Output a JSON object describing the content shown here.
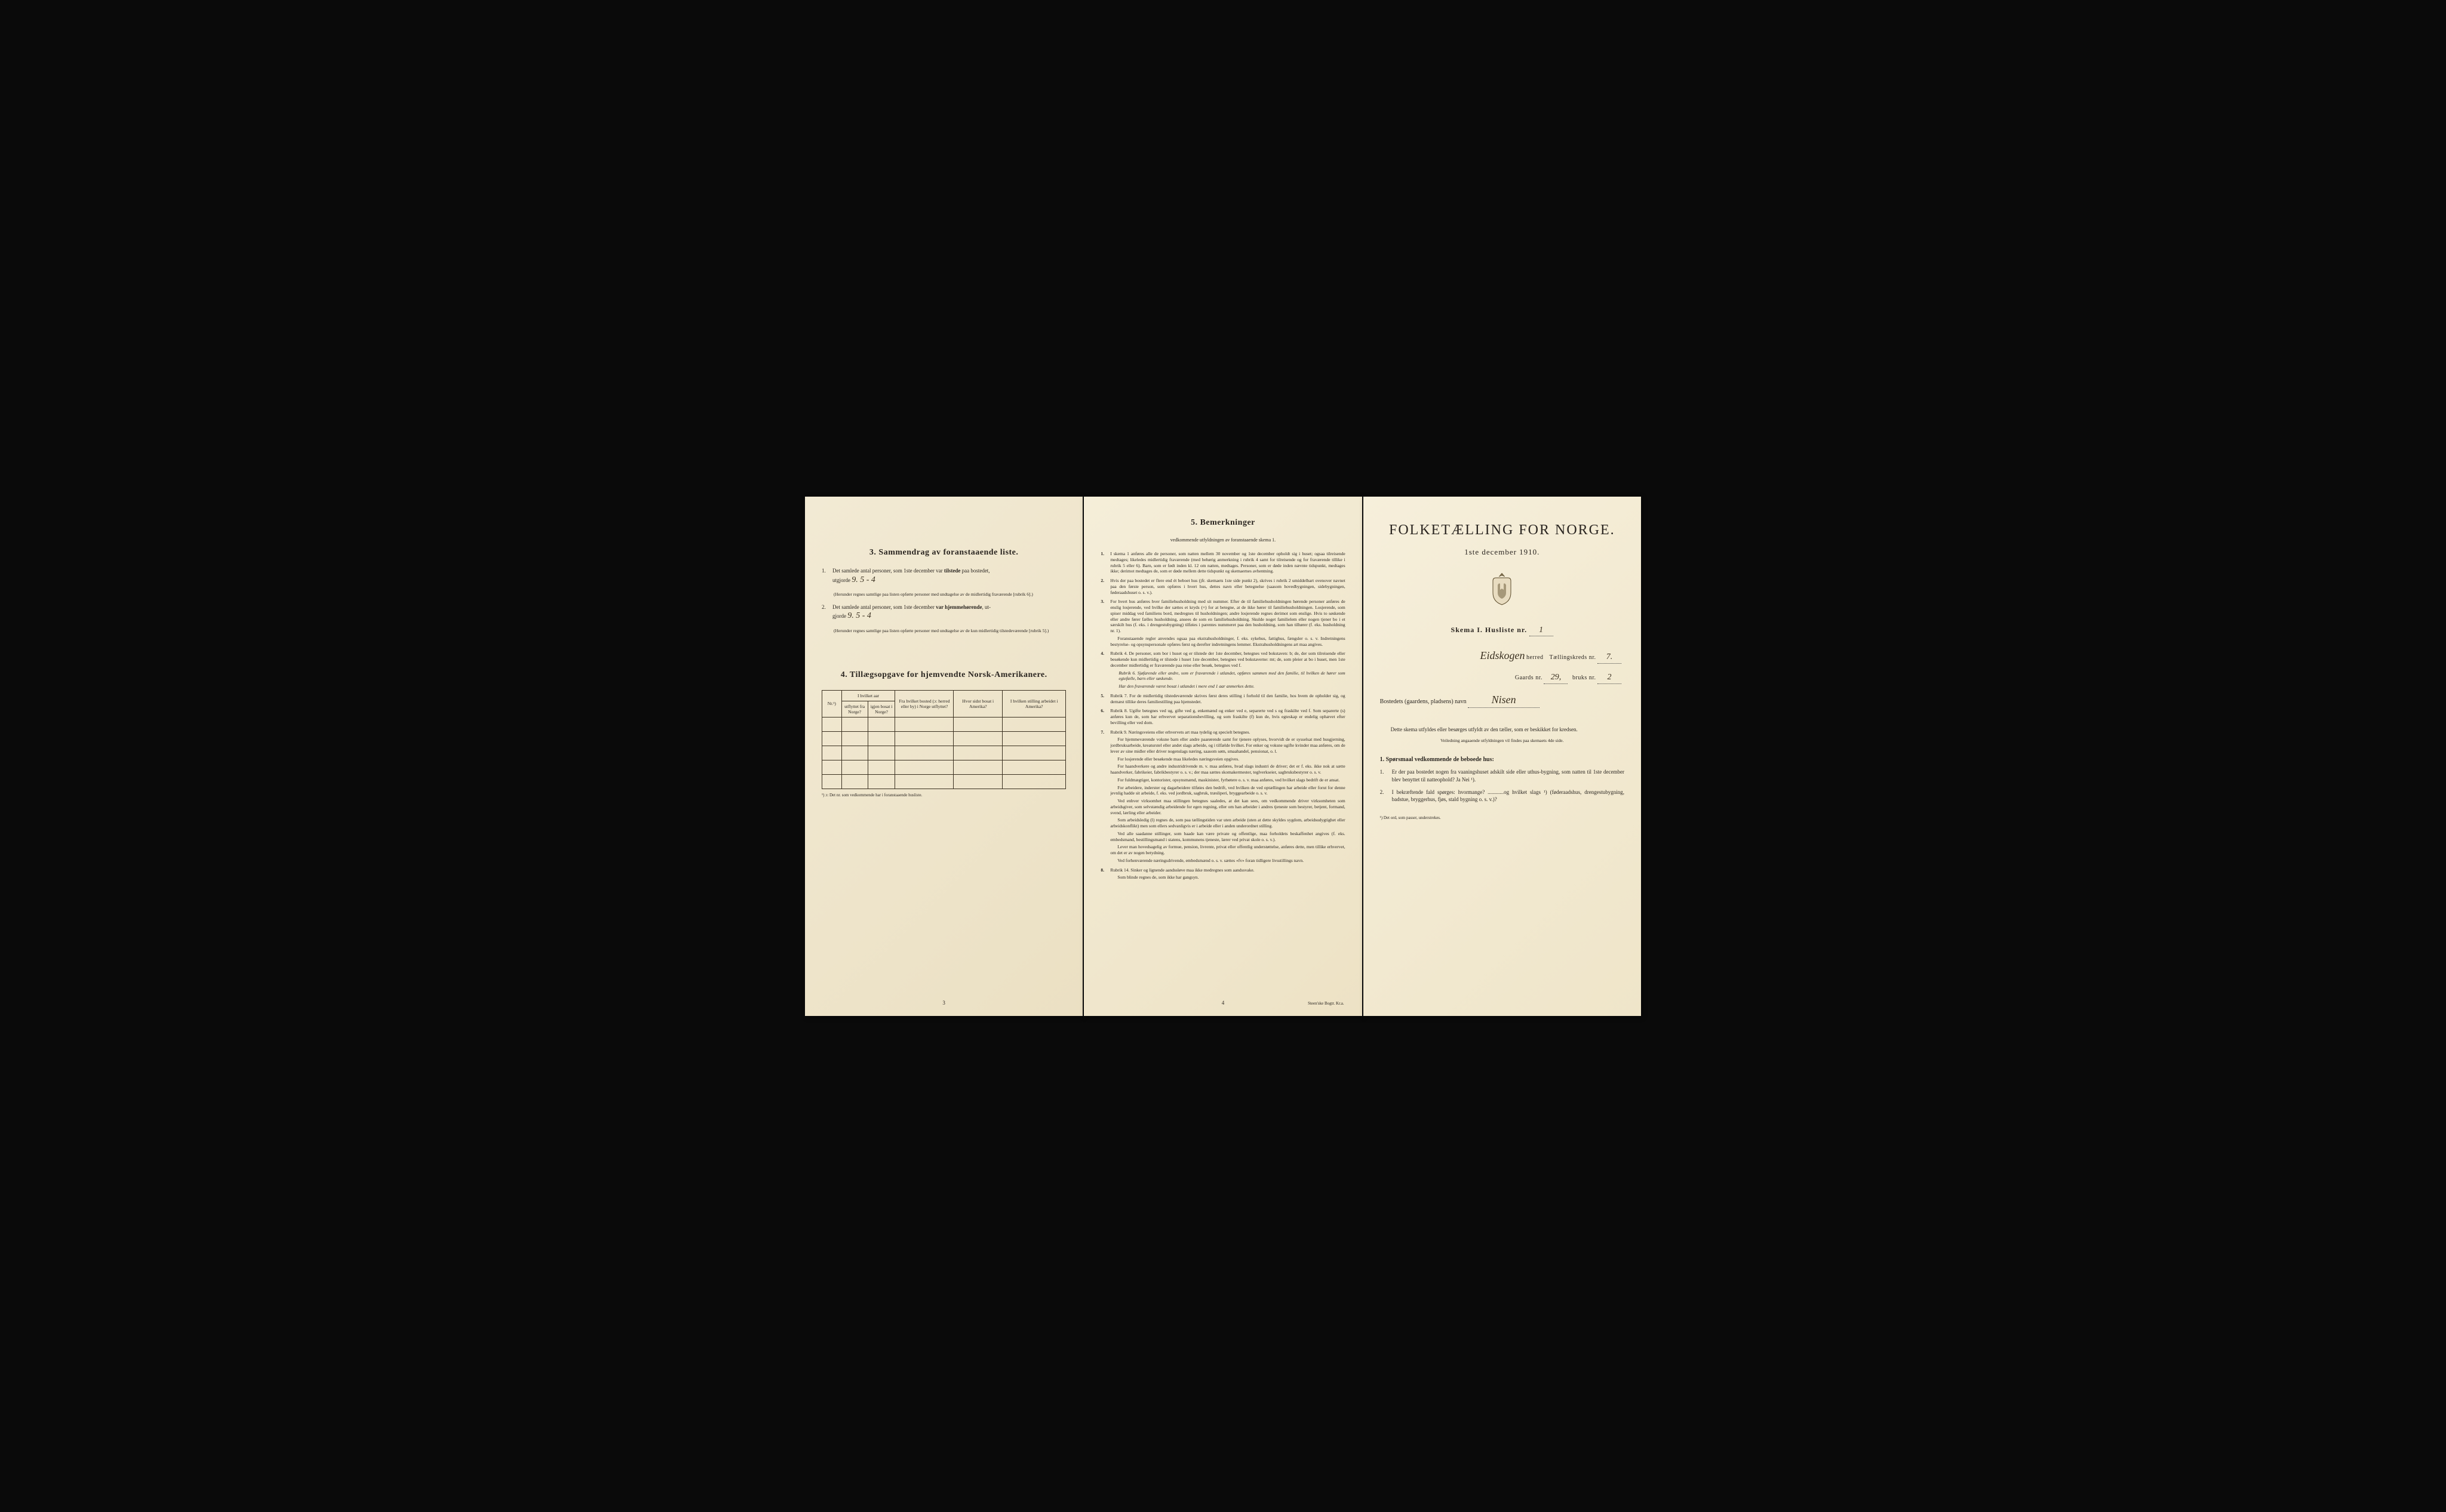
{
  "page1": {
    "section3_title": "3.   Sammendrag av foranstaaende liste.",
    "item1_prefix": "1.",
    "item1_text_a": "Det samlede antal personer, som 1ste december var ",
    "item1_bold": "tilstede",
    "item1_text_b": " paa bostedet,",
    "item1_line2": "utgjorde",
    "item1_handwritten": "9.     5 - 4",
    "item1_note": "(Herunder regnes samtlige paa listen opførte personer med undtagelse av de midlertidig fraværende [rubrik 6].)",
    "item2_prefix": "2.",
    "item2_text_a": "Det samlede antal personer, som 1ste december ",
    "item2_bold": "var hjemmehørende",
    "item2_text_b": ", ut-",
    "item2_line2": "gjorde",
    "item2_handwritten": "9.     5 - 4",
    "item2_note": "(Herunder regnes samtlige paa listen opførte personer med undtagelse av de kun midlertidig tilstedeværende [rubrik 5].)",
    "section4_title": "4.  Tillægsopgave for hjemvendte Norsk-Amerikanere.",
    "table_headers": {
      "col1": "Nr.¹)",
      "col2a": "I hvilket aar",
      "col2b_left": "utflyttet fra Norge?",
      "col2b_right": "igjen bosat i Norge?",
      "col3": "Fra hvilket bosted (ɔ: herred eller by) i Norge utflyttet?",
      "col4": "Hvor sidst bosat i Amerika?",
      "col5": "I hvilken stilling arbeidet i Amerika?"
    },
    "table_footnote": "¹) ɔ: Det nr. som vedkommende har i foranstaaende husliste.",
    "page_num": "3"
  },
  "page2": {
    "section5_title": "5.   Bemerkninger",
    "section5_sub": "vedkommende utfyldningen av foranstaaende skema 1.",
    "remarks": [
      {
        "num": "1.",
        "text": "I skema 1 anføres alle de personer, som natten mellem 30 november og 1ste december opholdt sig i huset; ogsaa tilreisende medtages; likeledes midlertidig fraværende (med behørig anmerkning i rubrik 4 samt for tilreisende og for fraværende tillike i rubrik 5 eller 6). Barn, som er født inden kl. 12 om natten, medtages. Personer, som er døde inden nævnte tidspunkt, medtages ikke; derimot medtages de, som er døde mellem dette tidspunkt og skemaernes avhentning."
      },
      {
        "num": "2.",
        "text": "Hvis der paa bostedet er flere end ét beboet hus (jfr. skemaets 1ste side punkt 2), skrives i rubrik 2 umiddelbart ovenover navnet paa den første person, som opføres i hvert hus, dettes navn eller betegnelse (saasom hovedbygningen, sidebygningen, føderaadshuset o. s. v.)."
      },
      {
        "num": "3.",
        "text": "For hvert hus anføres hver familiehusholdning med sit nummer. Efter de til familiehusholdningen hørende personer anføres de enslig losjerende, ved hvilke der sættes et kryds (×) for at betegne, at de ikke hører til familiehusholdningen. Losjerende, som spiser middag ved familiens bord, medregnes til husholdningen; andre losjerende regnes derimot som enslige. Hvis to søskende eller andre fører fælles husholdning, ansees de som en familiehusholdning. Skulde noget familielem eller nogen tjener bo i et særskilt hus (f. eks. i drengestubygning) tilføies i parentes nummeret paa den husholdning, som han tilhører (f. eks. husholdning nr. 1).",
        "paras": [
          "Foranstaaende regler anvendes ogsaa paa ekstrahusholdninger, f. eks. sykehus, fattighus, fængsler o. s. v. Indretningens bestyrelse- og opsynspersonale opføres først og derefter indretningens lemmer. Ekstrahusholdningens art maa angives."
        ]
      },
      {
        "num": "4.",
        "text": "Rubrik 4. De personer, som bor i huset og er tilstede der 1ste december, betegnes ved bokstaven: b; de, der som tilreisende eller besøkende kun midlertidig er tilstede i huset 1ste december, betegnes ved bokstaverne: mt; de, som pleier at bo i huset, men 1ste december midlertidig er fraværende paa reise eller besøk, betegnes ved f.",
        "subitems": [
          "Rubrik 6. Sjøfarende eller andre, som er fraværende i utlandet, opføres sammen med den familie, til hvilken de hører som egtefælle, barn eller søskende.",
          "Har den fraværende været bosat i utlandet i mere end 1 aar anmerkes dette."
        ]
      },
      {
        "num": "5.",
        "text": "Rubrik 7. For de midlertidig tilstedeværende skrives først deres stilling i forhold til den familie, hos hvem de opholder sig, og dernæst tillike deres familiestilling paa hjemstedet."
      },
      {
        "num": "6.",
        "text": "Rubrik 8. Ugifte betegnes ved ug, gifte ved g, enkemænd og enker ved e, separerte ved s og fraskilte ved f. Som separerte (s) anføres kun de, som har erhvervet separationsbevilling, og som fraskilte (f) kun de, hvis egteskap er endelig ophævet efter bevilling eller ved dom."
      },
      {
        "num": "7.",
        "text": "Rubrik 9. Næringsveiens eller erhvervets art maa tydelig og specielt betegnes.",
        "paras": [
          "For hjemmeværende voksne barn eller andre paarørende samt for tjenere oplyses, hvorvidt de er sysselsat med husgjerning, jordbruksarbeide, kreaturstel eller andet slags arbeide, og i tilfælde hvilket. For enker og voksne ugifte kvinder maa anføres, om de lever av sine midler eller driver nogenslags næring, saasom søm, smaahandel, pensionat, o. l.",
          "For losjerende eller besøkende maa likeledes næringsveien opgives.",
          "For haandverkere og andre industridrivende m. v. maa anføres, hvad slags industri de driver; det er f. eks. ikke nok at sætte haandverker, fabrikeier, fabrikbestyrer o. s. v.; der maa sættes skomakermester, teglverkseier, sagbruksbestyrer o. s. v.",
          "For fuldmægtiger, kontorister, opsynsmænd, maskinister, fyrbøtere o. s. v. maa anføres, ved hvilket slags bedrift de er ansat.",
          "For arbeidere, inderster og dagarbeidere tilføies den bedrift, ved hvilken de ved optællingen har arbeide eller forut for denne jevnlig hadde sit arbeide, f. eks. ved jordbruk, sagbruk, træsliperi, bryggearbeide o. s. v.",
          "Ved enhver virksomhet maa stillingen betegnes saaledes, at det kan sees, om vedkommende driver virksomheten som arbeidsgiver, som selvstændig arbeidende for egen regning, eller om han arbeider i andres tjeneste som bestyrer, betjent, formand, svend, lærling eller arbeider.",
          "Som arbeidsledig (l) regnes de, som paa tællingstiden var uten arbeide (uten at dette skyldes sygdom, arbeidsudygtighet eller arbeidskonflikt) men som ellers sedvanligvis er i arbeide eller i anden underordnet stilling.",
          "Ved alle saadanne stillinger, som baade kan være private og offentlige, maa forholdets beskaffenhet angives (f. eks. embedsmand, bestillingsmand i statens, kommunens tjeneste, lærer ved privat skole o. s. v.).",
          "Lever man hovedsagelig av formue, pension, livrente, privat eller offentlig understøttelse, anføres dette, men tillike erhvervet, om det er av nogen betydning.",
          "Ved forhenværende næringsdrivende, embedsmænd o. s. v. sættes «fv» foran tidligere livsstillings navn."
        ]
      },
      {
        "num": "8.",
        "text": "Rubrik 14. Sinker og lignende aandssløve maa ikke medregnes som aandssvake.",
        "paras": [
          "Som blinde regnes de, som ikke har gangsyn."
        ]
      }
    ],
    "page_num": "4",
    "printer": "Steen'ske Bogtr. Kr.a."
  },
  "page3": {
    "main_title": "FOLKETÆLLING FOR NORGE.",
    "date": "1ste december 1910.",
    "skema_label": "Skema I.  Husliste nr.",
    "skema_value": "1",
    "herred_handwritten": "Eidskogen",
    "herred_label": "herred",
    "kreds_label": "Tællingskreds nr.",
    "kreds_value": "7.",
    "gaards_label": "Gaards nr.",
    "gaards_value": "29,",
    "bruks_label": "bruks nr.",
    "bruks_value": "2",
    "bosted_label": "Bostedets (gaardens, pladsens) navn",
    "bosted_value": "Nisen",
    "instruction1": "Dette skema utfyldes eller besørges utfyldt av den tæller, som er beskikket for kredsen.",
    "instruction2": "Veiledning angaaende utfyldningen vil findes paa skemaets 4de side.",
    "q_header": "1. Spørsmaal vedkommende de beboede hus:",
    "q1_num": "1.",
    "q1_text": "Er der paa bostedet nogen fra vaaningshuset adskilt side eller uthus-bygning, som natten til 1ste december blev benyttet til natteophold?   Ja   Nei ¹).",
    "q2_num": "2.",
    "q2_text": "I bekræftende fald spørges: hvormange? ............og hvilket slags ¹) (føderaadshus, drengestubygning, badstue, bryggerhus, fjøs, stald bygning o. s. v.)?",
    "footnote": "¹) Det ord, som passer, understrekes."
  }
}
